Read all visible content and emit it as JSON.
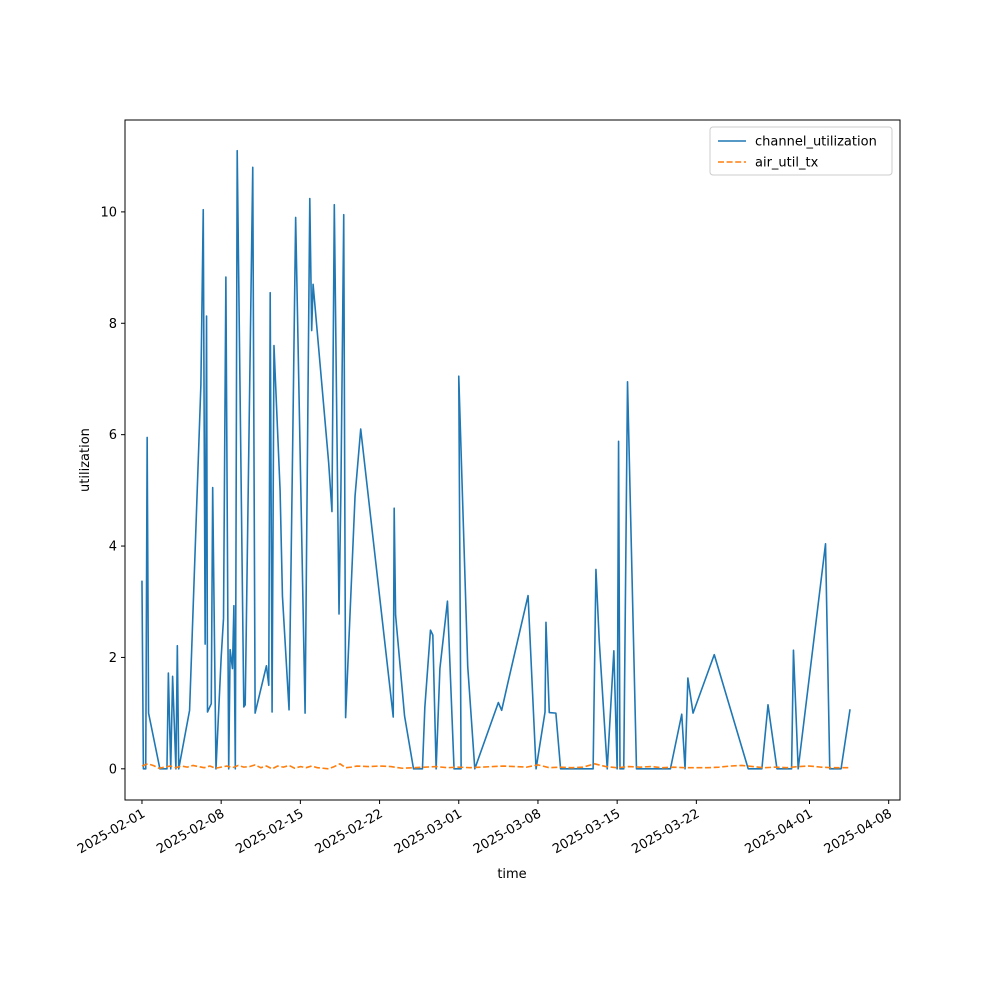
{
  "chart_data": {
    "type": "line",
    "title": "",
    "xlabel": "time",
    "ylabel": "utilization",
    "xlim": [
      "2025-01-30T12:00",
      "2025-04-09T00:00"
    ],
    "ylim": [
      -0.56,
      11.65
    ],
    "x_ticks": [
      "2025-02-01",
      "2025-02-08",
      "2025-02-15",
      "2025-02-22",
      "2025-03-01",
      "2025-03-08",
      "2025-03-15",
      "2025-03-22",
      "2025-04-01",
      "2025-04-08"
    ],
    "y_ticks": [
      0,
      2,
      4,
      6,
      8,
      10
    ],
    "grid": false,
    "legend_position": "top-right",
    "series": [
      {
        "name": "channel_utilization",
        "color": "#1f77b4",
        "style": "solid",
        "points": [
          [
            "2025-02-01T00:00",
            3.38
          ],
          [
            "2025-02-01T03:00",
            0.0
          ],
          [
            "2025-02-01T08:00",
            0.0
          ],
          [
            "2025-02-01T11:00",
            5.95
          ],
          [
            "2025-02-01T14:00",
            1.0
          ],
          [
            "2025-02-02T14:00",
            0.0
          ],
          [
            "2025-02-03T05:00",
            0.0
          ],
          [
            "2025-02-03T08:00",
            1.72
          ],
          [
            "2025-02-03T13:00",
            0.0
          ],
          [
            "2025-02-03T17:00",
            1.66
          ],
          [
            "2025-02-04T00:00",
            0.0
          ],
          [
            "2025-02-04T03:00",
            2.21
          ],
          [
            "2025-02-04T06:00",
            0.0
          ],
          [
            "2025-02-05T05:00",
            1.05
          ],
          [
            "2025-02-06T05:00",
            6.9
          ],
          [
            "2025-02-06T10:00",
            10.04
          ],
          [
            "2025-02-06T14:00",
            2.24
          ],
          [
            "2025-02-06T17:00",
            8.13
          ],
          [
            "2025-02-06T19:00",
            1.02
          ],
          [
            "2025-02-07T03:00",
            1.17
          ],
          [
            "2025-02-07T06:00",
            5.05
          ],
          [
            "2025-02-07T13:00",
            0.0
          ],
          [
            "2025-02-08T00:00",
            2.0
          ],
          [
            "2025-02-08T05:00",
            2.7
          ],
          [
            "2025-02-08T10:00",
            8.83
          ],
          [
            "2025-02-08T16:00",
            0.0
          ],
          [
            "2025-02-08T19:00",
            2.14
          ],
          [
            "2025-02-09T00:00",
            1.8
          ],
          [
            "2025-02-09T03:00",
            2.93
          ],
          [
            "2025-02-09T06:00",
            0.0
          ],
          [
            "2025-02-09T10:00",
            11.1
          ],
          [
            "2025-02-10T00:00",
            1.11
          ],
          [
            "2025-02-10T03:00",
            1.15
          ],
          [
            "2025-02-10T19:00",
            10.8
          ],
          [
            "2025-02-11T00:00",
            1.0
          ],
          [
            "2025-02-12T00:00",
            1.85
          ],
          [
            "2025-02-12T05:00",
            1.5
          ],
          [
            "2025-02-12T08:00",
            8.55
          ],
          [
            "2025-02-12T12:00",
            1.02
          ],
          [
            "2025-02-12T16:00",
            7.6
          ],
          [
            "2025-02-13T05:00",
            5.0
          ],
          [
            "2025-02-13T10:00",
            3.1
          ],
          [
            "2025-02-14T00:00",
            1.06
          ],
          [
            "2025-02-14T08:00",
            6.0
          ],
          [
            "2025-02-14T14:00",
            9.9
          ],
          [
            "2025-02-15T10:00",
            1.0
          ],
          [
            "2025-02-15T20:00",
            10.24
          ],
          [
            "2025-02-16T00:00",
            7.87
          ],
          [
            "2025-02-16T03:00",
            8.7
          ],
          [
            "2025-02-17T12:00",
            5.5
          ],
          [
            "2025-02-17T19:00",
            4.62
          ],
          [
            "2025-02-18T00:00",
            10.13
          ],
          [
            "2025-02-18T10:00",
            2.78
          ],
          [
            "2025-02-18T14:00",
            5.0
          ],
          [
            "2025-02-18T20:00",
            9.95
          ],
          [
            "2025-02-19T00:00",
            0.92
          ],
          [
            "2025-02-19T20:00",
            4.9
          ],
          [
            "2025-02-20T08:00",
            6.1
          ],
          [
            "2025-02-23T05:00",
            0.93
          ],
          [
            "2025-02-23T07:00",
            4.68
          ],
          [
            "2025-02-23T10:00",
            2.76
          ],
          [
            "2025-02-24T05:00",
            0.95
          ],
          [
            "2025-02-25T00:00",
            0.0
          ],
          [
            "2025-02-25T19:00",
            0.0
          ],
          [
            "2025-02-26T00:00",
            1.1
          ],
          [
            "2025-02-26T12:00",
            2.49
          ],
          [
            "2025-02-26T17:00",
            2.4
          ],
          [
            "2025-02-27T00:00",
            0.0
          ],
          [
            "2025-02-27T08:00",
            1.8
          ],
          [
            "2025-02-28T00:00",
            3.01
          ],
          [
            "2025-02-28T14:00",
            0.0
          ],
          [
            "2025-02-29T05:00",
            0.0
          ],
          [
            "2025-03-01T00:00",
            7.05
          ],
          [
            "2025-03-01T19:00",
            1.84
          ],
          [
            "2025-03-02T10:00",
            0.0
          ],
          [
            "2025-03-04T12:00",
            1.19
          ],
          [
            "2025-03-04T19:00",
            1.05
          ],
          [
            "2025-03-05T07:00",
            1.5
          ],
          [
            "2025-03-07T03:00",
            3.11
          ],
          [
            "2025-03-07T20:00",
            0.0
          ],
          [
            "2025-03-08T15:00",
            1.02
          ],
          [
            "2025-03-08T17:00",
            2.63
          ],
          [
            "2025-03-09T00:00",
            1.01
          ],
          [
            "2025-03-09T14:00",
            1.0
          ],
          [
            "2025-03-10T00:00",
            0.0
          ],
          [
            "2025-03-12T21:00",
            0.0
          ],
          [
            "2025-03-13T03:00",
            3.58
          ],
          [
            "2025-03-13T10:00",
            2.3
          ],
          [
            "2025-03-14T03:00",
            0.0
          ],
          [
            "2025-03-14T17:00",
            2.12
          ],
          [
            "2025-03-15T00:00",
            0.0
          ],
          [
            "2025-03-15T03:00",
            5.88
          ],
          [
            "2025-03-15T06:00",
            0.0
          ],
          [
            "2025-03-15T14:00",
            0.0
          ],
          [
            "2025-03-15T22:00",
            6.95
          ],
          [
            "2025-03-16T17:00",
            0.0
          ],
          [
            "2025-03-19T17:00",
            0.0
          ],
          [
            "2025-03-20T17:00",
            0.98
          ],
          [
            "2025-03-21T00:00",
            0.0
          ],
          [
            "2025-03-21T06:00",
            1.63
          ],
          [
            "2025-03-21T17:00",
            1.0
          ],
          [
            "2025-03-23T14:00",
            2.05
          ],
          [
            "2025-03-26T14:00",
            0.0
          ],
          [
            "2025-03-27T00:00",
            0.0
          ],
          [
            "2025-03-27T19:00",
            0.0
          ],
          [
            "2025-03-28T08:00",
            1.15
          ],
          [
            "2025-03-29T03:00",
            0.0
          ],
          [
            "2025-03-30T10:00",
            0.0
          ],
          [
            "2025-03-30T14:00",
            2.13
          ],
          [
            "2025-03-31T00:00",
            0.0
          ],
          [
            "2025-04-02T10:00",
            4.04
          ],
          [
            "2025-04-02T19:00",
            0.0
          ],
          [
            "2025-04-03T19:00",
            0.0
          ],
          [
            "2025-04-04T14:00",
            1.07
          ]
        ]
      },
      {
        "name": "air_util_tx",
        "color": "#ff7f0e",
        "style": "dashed",
        "points": [
          [
            "2025-02-01T00:00",
            0.05
          ],
          [
            "2025-02-01T12:00",
            0.09
          ],
          [
            "2025-02-02T00:00",
            0.06
          ],
          [
            "2025-02-02T12:00",
            0.01
          ],
          [
            "2025-02-03T00:00",
            0.03
          ],
          [
            "2025-02-03T12:00",
            0.05
          ],
          [
            "2025-02-04T00:00",
            0.02
          ],
          [
            "2025-02-04T12:00",
            0.05
          ],
          [
            "2025-02-05T00:00",
            0.03
          ],
          [
            "2025-02-05T12:00",
            0.06
          ],
          [
            "2025-02-06T00:00",
            0.04
          ],
          [
            "2025-02-06T12:00",
            0.02
          ],
          [
            "2025-02-07T00:00",
            0.05
          ],
          [
            "2025-02-07T12:00",
            0.01
          ],
          [
            "2025-02-08T00:00",
            0.03
          ],
          [
            "2025-02-08T12:00",
            0.05
          ],
          [
            "2025-02-09T00:00",
            0.02
          ],
          [
            "2025-02-09T12:00",
            0.06
          ],
          [
            "2025-02-10T00:00",
            0.03
          ],
          [
            "2025-02-10T12:00",
            0.04
          ],
          [
            "2025-02-11T00:00",
            0.07
          ],
          [
            "2025-02-11T12:00",
            0.02
          ],
          [
            "2025-02-12T00:00",
            0.05
          ],
          [
            "2025-02-12T12:00",
            0.0
          ],
          [
            "2025-02-13T00:00",
            0.05
          ],
          [
            "2025-02-13T12:00",
            0.03
          ],
          [
            "2025-02-14T00:00",
            0.06
          ],
          [
            "2025-02-14T12:00",
            0.01
          ],
          [
            "2025-02-15T00:00",
            0.04
          ],
          [
            "2025-02-15T12:00",
            0.02
          ],
          [
            "2025-02-16T00:00",
            0.05
          ],
          [
            "2025-02-16T12:00",
            0.02
          ],
          [
            "2025-02-17T00:00",
            0.01
          ],
          [
            "2025-02-17T12:00",
            0.0
          ],
          [
            "2025-02-18T00:00",
            0.04
          ],
          [
            "2025-02-18T12:00",
            0.09
          ],
          [
            "2025-02-19T00:00",
            0.02
          ],
          [
            "2025-02-19T12:00",
            0.03
          ],
          [
            "2025-02-20T00:00",
            0.05
          ],
          [
            "2025-02-21T00:00",
            0.04
          ],
          [
            "2025-02-22T00:00",
            0.05
          ],
          [
            "2025-02-23T00:00",
            0.04
          ],
          [
            "2025-02-24T00:00",
            0.01
          ],
          [
            "2025-02-25T00:00",
            0.02
          ],
          [
            "2025-02-26T00:00",
            0.03
          ],
          [
            "2025-02-27T00:00",
            0.04
          ],
          [
            "2025-02-28T00:00",
            0.02
          ],
          [
            "2025-03-01T00:00",
            0.03
          ],
          [
            "2025-03-02T00:00",
            0.02
          ],
          [
            "2025-03-03T00:00",
            0.03
          ],
          [
            "2025-03-04T00:00",
            0.04
          ],
          [
            "2025-03-05T00:00",
            0.05
          ],
          [
            "2025-03-06T00:00",
            0.04
          ],
          [
            "2025-03-07T00:00",
            0.03
          ],
          [
            "2025-03-08T00:00",
            0.07
          ],
          [
            "2025-03-09T00:00",
            0.02
          ],
          [
            "2025-03-10T00:00",
            0.03
          ],
          [
            "2025-03-11T00:00",
            0.02
          ],
          [
            "2025-03-12T00:00",
            0.03
          ],
          [
            "2025-03-13T00:00",
            0.09
          ],
          [
            "2025-03-14T00:00",
            0.04
          ],
          [
            "2025-03-15T00:00",
            0.02
          ],
          [
            "2025-03-16T00:00",
            0.04
          ],
          [
            "2025-03-17T00:00",
            0.03
          ],
          [
            "2025-03-18T00:00",
            0.04
          ],
          [
            "2025-03-19T00:00",
            0.02
          ],
          [
            "2025-03-20T00:00",
            0.03
          ],
          [
            "2025-03-21T00:00",
            0.02
          ],
          [
            "2025-03-22T00:00",
            0.02
          ],
          [
            "2025-03-23T00:00",
            0.02
          ],
          [
            "2025-03-24T00:00",
            0.03
          ],
          [
            "2025-03-25T00:00",
            0.05
          ],
          [
            "2025-03-26T00:00",
            0.06
          ],
          [
            "2025-03-27T00:00",
            0.04
          ],
          [
            "2025-03-28T00:00",
            0.02
          ],
          [
            "2025-03-29T00:00",
            0.03
          ],
          [
            "2025-03-30T00:00",
            0.02
          ],
          [
            "2025-03-31T00:00",
            0.04
          ],
          [
            "2025-04-01T00:00",
            0.05
          ],
          [
            "2025-04-02T00:00",
            0.03
          ],
          [
            "2025-04-03T00:00",
            0.02
          ],
          [
            "2025-04-04T14:00",
            0.02
          ]
        ]
      }
    ]
  }
}
